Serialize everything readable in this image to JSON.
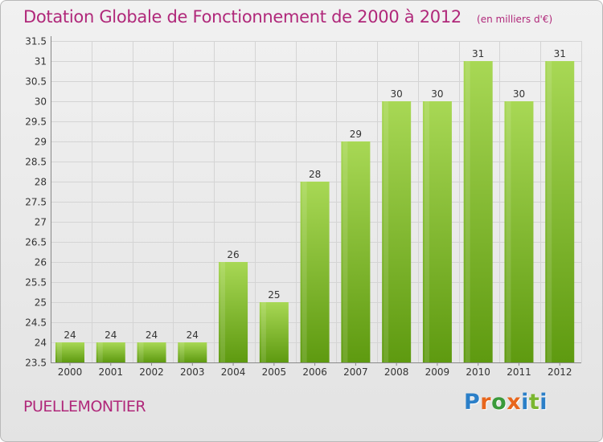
{
  "header": {
    "title": "Dotation Globale de Fonctionnement de 2000 à 2012",
    "unit_note": "(en milliers d'€)"
  },
  "footer": {
    "commune": "PUELLEMONTIER"
  },
  "logo": {
    "text": "Proxiti",
    "letters": [
      {
        "ch": "P",
        "color": "#2b7fc8"
      },
      {
        "ch": "r",
        "color": "#e8661c"
      },
      {
        "ch": "o",
        "color": "#3a9a3a"
      },
      {
        "ch": "x",
        "color": "#e8661c"
      },
      {
        "ch": "i",
        "color": "#2b7fc8"
      },
      {
        "ch": "t",
        "color": "#7ab630"
      },
      {
        "ch": "i",
        "color": "#2b7fc8"
      }
    ]
  },
  "colors": {
    "bar_light": "#a8d855",
    "bar_dark": "#5e9a10",
    "grid": "#d4d4d4",
    "axis_text": "#333333",
    "title": "#b0287a"
  },
  "chart_data": {
    "type": "bar",
    "title": "Dotation Globale de Fonctionnement de 2000 à 2012",
    "subtitle": "(en milliers d'€)",
    "xlabel": "",
    "ylabel": "",
    "categories": [
      "2000",
      "2001",
      "2002",
      "2003",
      "2004",
      "2005",
      "2006",
      "2007",
      "2008",
      "2009",
      "2010",
      "2011",
      "2012"
    ],
    "values": [
      24,
      24,
      24,
      24,
      26,
      25,
      28,
      29,
      30,
      30,
      31,
      30,
      31
    ],
    "data_labels": [
      "24",
      "24",
      "24",
      "24",
      "26",
      "25",
      "28",
      "29",
      "30",
      "30",
      "31",
      "30",
      "31"
    ],
    "ylim": [
      23.5,
      31.5
    ],
    "yticks": [
      23.5,
      24,
      24.5,
      25,
      25.5,
      26,
      26.5,
      27,
      27.5,
      28,
      28.5,
      29,
      29.5,
      30,
      30.5,
      31,
      31.5
    ],
    "ytick_labels": [
      "23.5",
      "24",
      "24.5",
      "25",
      "25.5",
      "26",
      "26.5",
      "27",
      "27.5",
      "28",
      "28.5",
      "29",
      "29.5",
      "30",
      "30.5",
      "31",
      "31.5"
    ],
    "grid": true,
    "legend": "none"
  }
}
